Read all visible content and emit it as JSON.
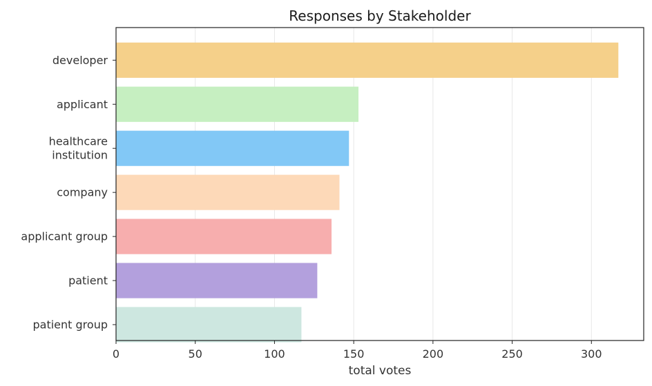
{
  "chart_data": {
    "type": "bar",
    "orientation": "horizontal",
    "title": "Responses by Stakeholder",
    "xlabel": "total votes",
    "ylabel": "",
    "xlim": [
      0,
      333
    ],
    "xticks": [
      0,
      50,
      100,
      150,
      200,
      250,
      300
    ],
    "grid": "vertical",
    "categories": [
      [
        "developer"
      ],
      [
        "applicant"
      ],
      [
        "healthcare",
        "institution"
      ],
      [
        "company"
      ],
      [
        "applicant group"
      ],
      [
        "patient"
      ],
      [
        "patient group"
      ]
    ],
    "values": [
      317,
      153,
      147,
      141,
      136,
      127,
      117
    ],
    "colors": [
      "#f5d08a",
      "#c6efc1",
      "#82c8f6",
      "#fdd9b8",
      "#f7aeae",
      "#b3a0dd",
      "#cde7e0"
    ]
  }
}
